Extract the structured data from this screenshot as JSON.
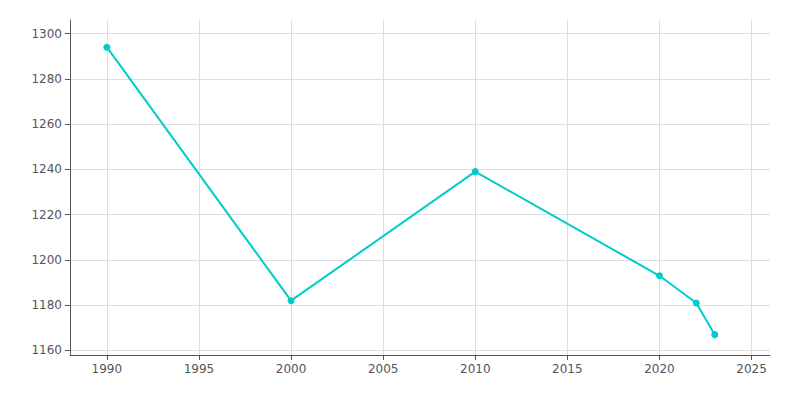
{
  "chart_data": {
    "type": "line",
    "x": [
      1990,
      2000,
      2010,
      2020,
      2022,
      2023
    ],
    "values": [
      1294,
      1182,
      1239,
      1193,
      1181,
      1167
    ],
    "color": "#00CCCC",
    "marker": "circle",
    "xlim": [
      1988,
      2026
    ],
    "ylim": [
      1158,
      1306
    ],
    "xticks": [
      1990,
      1995,
      2000,
      2005,
      2010,
      2015,
      2020,
      2025
    ],
    "yticks": [
      1160,
      1180,
      1200,
      1220,
      1240,
      1260,
      1280,
      1300
    ],
    "grid": true
  }
}
